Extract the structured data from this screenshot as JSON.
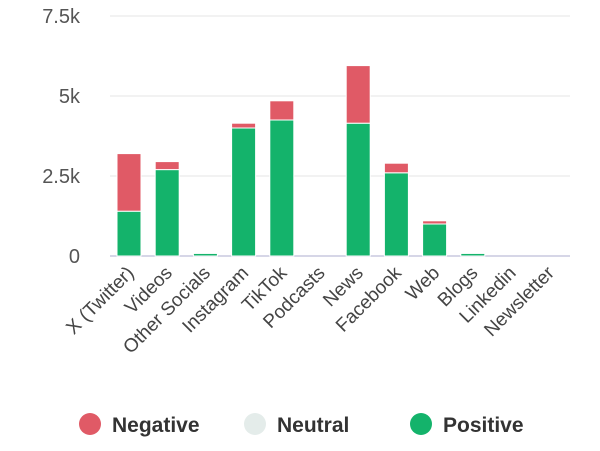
{
  "chart_data": {
    "type": "bar",
    "stacked": true,
    "categories": [
      "X (Twitter)",
      "Videos",
      "Other Socials",
      "Instagram",
      "TikTok",
      "Podcasts",
      "News",
      "Facebook",
      "Web",
      "Blogs",
      "Linkedin",
      "Newsletter"
    ],
    "series": [
      {
        "name": "Negative",
        "color": "#e05a66",
        "values": [
          1800,
          250,
          0,
          150,
          600,
          0,
          1800,
          300,
          100,
          0,
          0,
          0
        ]
      },
      {
        "name": "Neutral",
        "color": "#e4ecea",
        "values": [
          0,
          0,
          0,
          0,
          0,
          0,
          0,
          0,
          0,
          0,
          0,
          0
        ]
      },
      {
        "name": "Positive",
        "color": "#14b36b",
        "values": [
          1400,
          2700,
          80,
          4000,
          4250,
          0,
          4150,
          2600,
          1000,
          80,
          0,
          0
        ]
      }
    ],
    "ylim": [
      0,
      7500
    ],
    "yticks": [
      0,
      2500,
      5000,
      7500
    ],
    "ytick_labels": [
      "0",
      "2.5k",
      "5k",
      "7.5k"
    ],
    "grid": true,
    "legend": "bottom",
    "title": "",
    "xlabel": "",
    "ylabel": ""
  }
}
